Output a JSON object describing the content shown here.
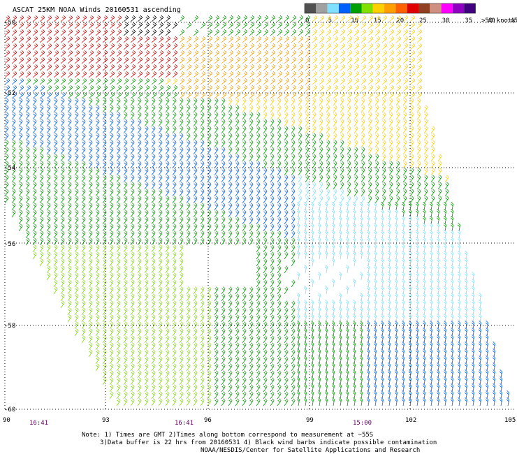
{
  "title": "ASCAT 25KM NOAA Winds 20160531 ascending",
  "legend": {
    "unit": ">50 knots",
    "ticks": [
      "0",
      "5",
      "10",
      "15",
      "20",
      "25",
      "30",
      "35",
      "40",
      "45"
    ],
    "colors": [
      "#505050",
      "#a0a0a0",
      "#80e0ff",
      "#0060ff",
      "#00a000",
      "#80e000",
      "#ffd000",
      "#ffa000",
      "#ff6000",
      "#e00000",
      "#904020",
      "#d09080",
      "#ff00ff",
      "#9000c0",
      "#400080"
    ]
  },
  "map": {
    "lat_labels": [
      "-50",
      "-52",
      "-54",
      "-56",
      "-58",
      "-60"
    ],
    "lon_labels": [
      "90",
      "93",
      "96",
      "99",
      "102",
      "105"
    ],
    "times": [
      "16:41",
      "16:41",
      "15:00"
    ]
  },
  "footer": {
    "note1": "Note: 1) Times are GMT 2)Times along bottom correspond to measurement at ~55S",
    "note2": "3)Data buffer is 22 hrs from 20160531 4) Black wind barbs indicate possible contamination",
    "credit": "NOAA/NESDIS/Center for Satellite Applications and Research"
  }
}
